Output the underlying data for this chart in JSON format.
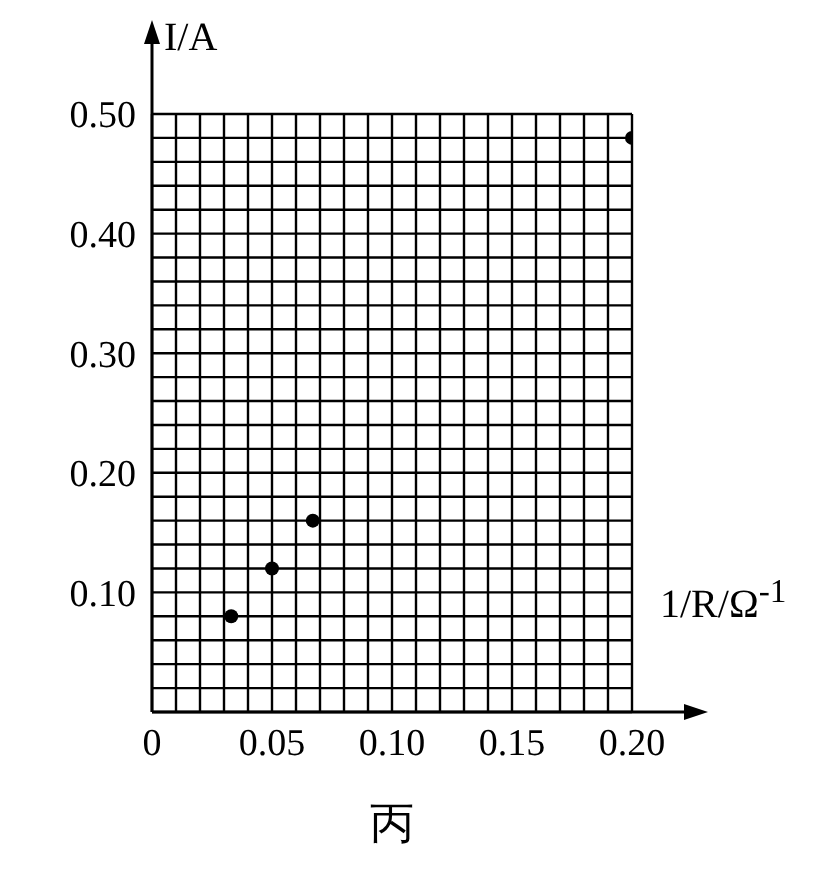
{
  "chart_data": {
    "type": "scatter",
    "xlabel": "1/R/Ω$^{-1}$",
    "ylabel": "I/A",
    "annotations": [
      "丙"
    ],
    "x": [
      0.033,
      0.05,
      0.067,
      0.2
    ],
    "series": [
      {
        "color": "#000000",
        "values": [
          0.08,
          0.12,
          0.16,
          0.48
        ]
      }
    ],
    "marker": "circle",
    "grid": true,
    "xlim": [
      0,
      0.2
    ],
    "ylim": [
      0,
      0.5
    ],
    "xticks": [
      0,
      {
        "value": 0.01,
        "label": null
      },
      {
        "value": 0.02,
        "label": null
      },
      {
        "value": 0.03,
        "label": null
      },
      {
        "value": 0.04,
        "label": null
      },
      {
        "value": 0.05,
        "label": "0.05"
      },
      {
        "value": 0.06,
        "label": null
      },
      {
        "value": 0.07,
        "label": null
      },
      {
        "value": 0.08,
        "label": null
      },
      {
        "value": 0.09,
        "label": null
      },
      {
        "value": 0.1,
        "label": "0.10"
      },
      {
        "value": 0.11,
        "label": null
      },
      {
        "value": 0.12,
        "label": null
      },
      {
        "value": 0.13,
        "label": null
      },
      {
        "value": 0.14,
        "label": null
      },
      {
        "value": 0.15,
        "label": "0.15"
      },
      {
        "value": 0.16,
        "label": null
      },
      {
        "value": 0.17,
        "label": null
      },
      {
        "value": 0.18,
        "label": null
      },
      {
        "value": 0.19,
        "label": null
      },
      {
        "value": 0.2,
        "label": "0.20"
      }
    ],
    "yticks": [
      {
        "value": 0,
        "label": null
      },
      {
        "value": 0.02,
        "label": null
      },
      {
        "value": 0.04,
        "label": null
      },
      {
        "value": 0.06,
        "label": null
      },
      {
        "value": 0.08,
        "label": null
      },
      {
        "value": 0.1,
        "label": "0.10"
      },
      {
        "value": 0.12,
        "label": null
      },
      {
        "value": 0.14,
        "label": null
      },
      {
        "value": 0.16,
        "label": null
      },
      {
        "value": 0.18,
        "label": null
      },
      {
        "value": 0.2,
        "label": "0.20"
      },
      {
        "value": 0.22,
        "label": null
      },
      {
        "value": 0.24,
        "label": null
      },
      {
        "value": 0.26,
        "label": null
      },
      {
        "value": 0.28,
        "label": null
      },
      {
        "value": 0.3,
        "label": "0.30"
      },
      {
        "value": 0.32,
        "label": null
      },
      {
        "value": 0.34,
        "label": null
      },
      {
        "value": 0.36,
        "label": null
      },
      {
        "value": 0.38,
        "label": null
      },
      {
        "value": 0.4,
        "label": "0.40"
      },
      {
        "value": 0.42,
        "label": null
      },
      {
        "value": 0.44,
        "label": null
      },
      {
        "value": 0.46,
        "label": null
      },
      {
        "value": 0.48,
        "label": null
      },
      {
        "value": 0.5,
        "label": "0.50"
      }
    ]
  }
}
